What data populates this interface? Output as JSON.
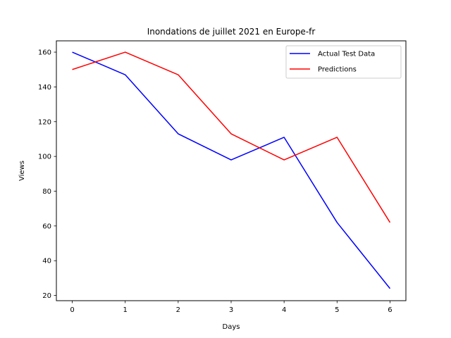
{
  "chart_data": {
    "type": "line",
    "title": "Inondations de juillet 2021 en Europe-fr",
    "xlabel": "Days",
    "ylabel": "Views",
    "x": [
      0,
      1,
      2,
      3,
      4,
      5,
      6
    ],
    "xlim": [
      -0.3,
      6.3
    ],
    "ylim": [
      17,
      166.5
    ],
    "xticks": [
      0,
      1,
      2,
      3,
      4,
      5,
      6
    ],
    "yticks": [
      20,
      40,
      60,
      80,
      100,
      120,
      140,
      160
    ],
    "grid": false,
    "legend_position": "top-right",
    "series": [
      {
        "name": "Actual Test Data",
        "color": "#0000ff",
        "values": [
          160,
          147,
          113,
          98,
          111,
          62,
          24
        ]
      },
      {
        "name": "Predictions",
        "color": "#ff0000",
        "values": [
          150,
          160,
          147,
          113,
          98,
          111,
          62
        ]
      }
    ]
  }
}
